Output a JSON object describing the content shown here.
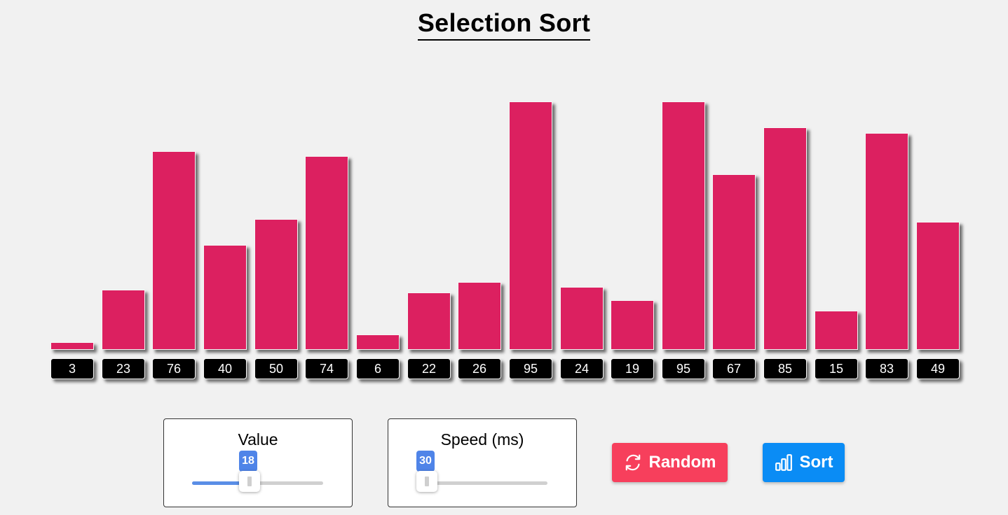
{
  "title": "Selection Sort",
  "bars": {
    "values": [
      3,
      23,
      76,
      40,
      50,
      74,
      6,
      22,
      26,
      95,
      24,
      19,
      95,
      67,
      85,
      15,
      83,
      49
    ],
    "color": "#dc2060",
    "label_background": "#000000"
  },
  "controls": {
    "value": {
      "label": "Value",
      "current": 18,
      "current_text": "18",
      "fraction": 0.44
    },
    "speed": {
      "label": "Speed (ms)",
      "current": 30,
      "current_text": "30",
      "fraction": 0.0
    },
    "slider_fill_color": "#5a8ee6",
    "random_button": {
      "label": "Random",
      "icon": "refresh-icon",
      "color": "#f73f5c"
    },
    "sort_button": {
      "label": "Sort",
      "icon": "bar-chart-icon",
      "color": "#0a8cf5"
    }
  }
}
